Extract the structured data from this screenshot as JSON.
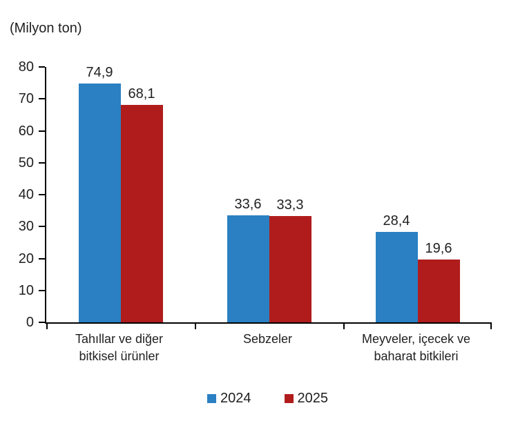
{
  "chart_data": {
    "type": "bar",
    "title": "(Milyon ton)",
    "categories": [
      "Tahıllar ve diğer bitkisel ürünler",
      "Sebzeler",
      "Meyveler, içecek ve baharat bitkileri"
    ],
    "category_label_lines": [
      [
        "Tahıllar ve diğer",
        "bitkisel ürünler"
      ],
      [
        "Sebzeler"
      ],
      [
        "Meyveler, içecek ve",
        "baharat bitkileri"
      ]
    ],
    "series": [
      {
        "name": "2024",
        "color": "#2A80C2",
        "values": [
          74.9,
          33.6,
          28.4
        ],
        "value_labels": [
          "74,9",
          "33,6",
          "28,4"
        ]
      },
      {
        "name": "2025",
        "color": "#B01C1C",
        "values": [
          68.1,
          33.3,
          19.6
        ],
        "value_labels": [
          "68,1",
          "33,3",
          "19,6"
        ]
      }
    ],
    "ylabel": "",
    "xlabel": "",
    "ylim": [
      0,
      80
    ],
    "yticks": [
      0,
      10,
      20,
      30,
      40,
      50,
      60,
      70,
      80
    ],
    "grid": false,
    "legend_position": "bottom",
    "axis_color": "#000000",
    "text_color": "#1f1f1f"
  }
}
